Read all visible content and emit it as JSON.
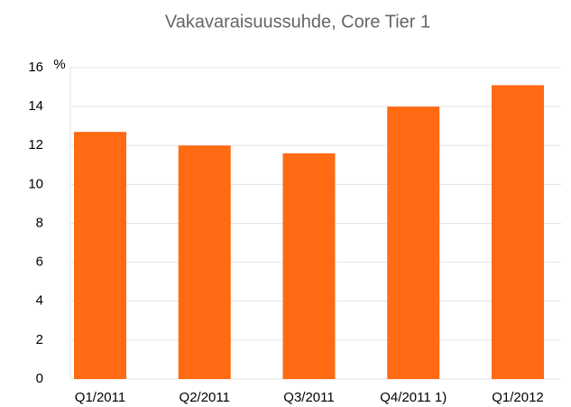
{
  "chart_data": {
    "type": "bar",
    "title": "Vakavaraisuussuhde, Core Tier 1",
    "y_label": "%",
    "categories": [
      "Q1/2011",
      "Q2/2011",
      "Q3/2011",
      "Q4/2011 1)",
      "Q1/2012"
    ],
    "values": [
      12.7,
      12.0,
      11.6,
      14.0,
      15.1
    ],
    "color": "#ff6a13",
    "ylim": [
      0,
      16
    ],
    "yticks": [
      0,
      2,
      4,
      6,
      8,
      10,
      12,
      14,
      16
    ],
    "grid": true
  }
}
